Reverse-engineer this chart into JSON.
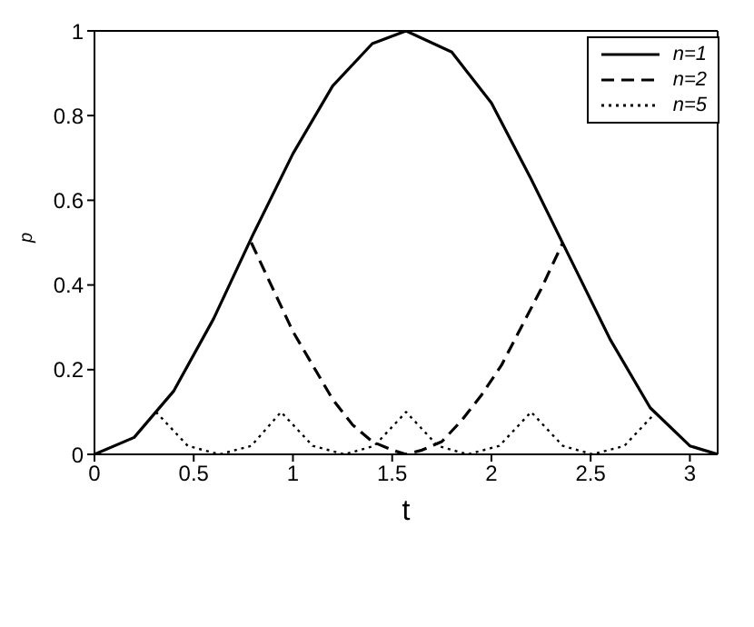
{
  "chart_data": {
    "type": "line",
    "xlabel": "t",
    "ylabel": "p",
    "xlim": [
      0,
      3.14
    ],
    "ylim": [
      0,
      1
    ],
    "xticks": [
      0,
      0.5,
      1,
      1.5,
      2,
      2.5,
      3
    ],
    "yticks": [
      0,
      0.2,
      0.4,
      0.6,
      0.8,
      1
    ],
    "legend": "top right",
    "marker": "none",
    "series": [
      {
        "name": "n=1",
        "color": "#000000",
        "line_style": "solid",
        "x": [
          0,
          0.2,
          0.4,
          0.6,
          0.8,
          1.0,
          1.2,
          1.4,
          1.57,
          1.8,
          2.0,
          2.2,
          2.4,
          2.6,
          2.8,
          3.0,
          3.14
        ],
        "values": [
          0,
          0.04,
          0.15,
          0.32,
          0.52,
          0.71,
          0.87,
          0.97,
          1,
          0.95,
          0.83,
          0.65,
          0.46,
          0.27,
          0.11,
          0.02,
          0
        ]
      },
      {
        "name": "n=2",
        "color": "#000000",
        "line_style": "dashed",
        "x": [
          0.79,
          0.9,
          1.0,
          1.1,
          1.2,
          1.3,
          1.4,
          1.5,
          1.57,
          1.65,
          1.75,
          1.85,
          1.95,
          2.05,
          2.15,
          2.25,
          2.36
        ],
        "values": [
          0.5,
          0.39,
          0.29,
          0.21,
          0.13,
          0.07,
          0.03,
          0.01,
          0,
          0.01,
          0.03,
          0.08,
          0.14,
          0.21,
          0.3,
          0.39,
          0.5
        ]
      },
      {
        "name": "n=5",
        "color": "#000000",
        "line_style": "dotted",
        "x": [
          0.31,
          0.47,
          0.63,
          0.79,
          0.94,
          1.1,
          1.26,
          1.41,
          1.57,
          1.73,
          1.88,
          2.04,
          2.2,
          2.36,
          2.51,
          2.67,
          2.83
        ],
        "values": [
          0.1,
          0.02,
          0,
          0.02,
          0.1,
          0.02,
          0,
          0.02,
          0.1,
          0.02,
          0,
          0.02,
          0.1,
          0.02,
          0,
          0.02,
          0.1
        ]
      }
    ]
  }
}
